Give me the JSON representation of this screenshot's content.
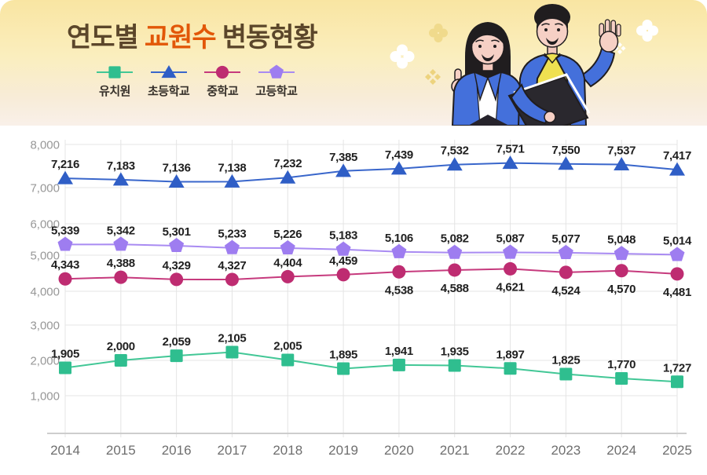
{
  "header": {
    "title": {
      "part1": "연도별",
      "part2": "교원수",
      "part3": "변동현황"
    },
    "colors": {
      "title_brown": "#5B462A",
      "title_orange": "#E25708"
    }
  },
  "chart_data": {
    "type": "line",
    "title": "연도별 교원수 변동현황",
    "x": [
      "2014",
      "2015",
      "2016",
      "2017",
      "2018",
      "2019",
      "2020",
      "2021",
      "2022",
      "2023",
      "2024",
      "2025"
    ],
    "series": [
      {
        "name": "유치원",
        "marker": "square",
        "color": "#2FBE8F",
        "line_color": "#42C796",
        "label_side": "above",
        "values": [
          1905,
          2000,
          2059,
          2105,
          2005,
          1895,
          1941,
          1935,
          1897,
          1825,
          1770,
          1727
        ]
      },
      {
        "name": "초등학교",
        "marker": "triangle",
        "color": "#2F5EC6",
        "line_color": "#3966CB",
        "label_side": "above",
        "values": [
          7216,
          7183,
          7136,
          7138,
          7232,
          7385,
          7439,
          7532,
          7571,
          7550,
          7537,
          7417
        ]
      },
      {
        "name": "중학교",
        "marker": "circle",
        "color": "#BE2C71",
        "line_color": "#C63A7D",
        "label_side": [
          "above",
          "above",
          "above",
          "above",
          "above",
          "above",
          "below",
          "below",
          "below",
          "below",
          "below",
          "below"
        ],
        "values": [
          4343,
          4388,
          4329,
          4327,
          4404,
          4459,
          4538,
          4588,
          4621,
          4524,
          4570,
          4481
        ]
      },
      {
        "name": "고등학교",
        "marker": "pentagon",
        "color": "#9E7DF0",
        "line_color": "#A98BF2",
        "label_side": "above",
        "values": [
          5339,
          5342,
          5301,
          5233,
          5226,
          5183,
          5106,
          5082,
          5087,
          5077,
          5048,
          5014
        ]
      }
    ],
    "y_ticks": [
      8000,
      7000,
      6000,
      5000,
      4000,
      3000,
      2000,
      1000
    ],
    "ylim": [
      0,
      8400
    ],
    "grid": true,
    "legend_position": "top-left-under-title"
  }
}
